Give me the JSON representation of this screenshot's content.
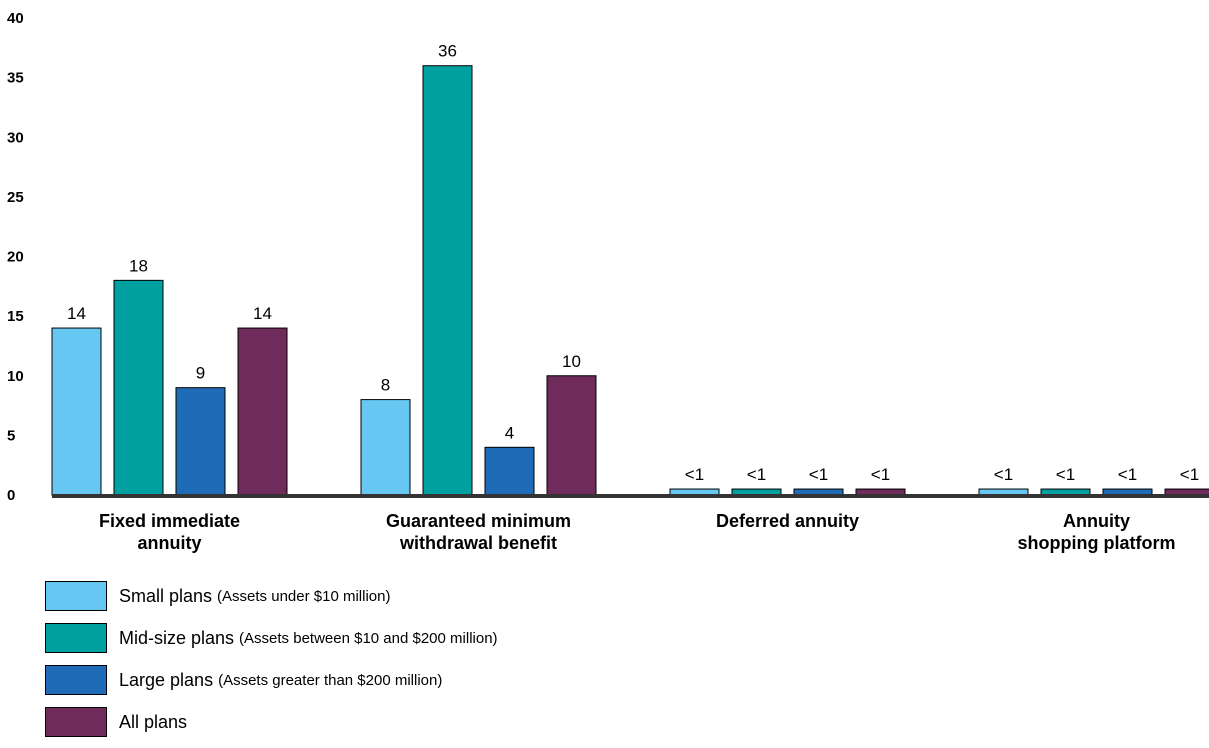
{
  "chart_data": {
    "type": "bar",
    "title": "",
    "xlabel": "",
    "ylabel": "",
    "ylim": [
      0,
      40
    ],
    "yticks": [
      0,
      5,
      10,
      15,
      20,
      25,
      30,
      35,
      40
    ],
    "grid": false,
    "legend_position": "bottom-left",
    "categories": [
      [
        "Fixed immediate",
        "annuity"
      ],
      [
        "Guaranteed minimum",
        "withdrawal benefit"
      ],
      [
        "Deferred annuity"
      ],
      [
        "Annuity",
        "shopping platform"
      ]
    ],
    "series": [
      {
        "name": "Small plans",
        "note": "(Assets under $10 million)",
        "color": "#66c8f2",
        "values": [
          14,
          8,
          0.5,
          0.5
        ],
        "labels": [
          "14",
          "8",
          "<1",
          "<1"
        ]
      },
      {
        "name": "Mid-size plans",
        "note": "(Assets between $10 and $200 million)",
        "color": "#00a0a0",
        "values": [
          18,
          36,
          0.5,
          0.5
        ],
        "labels": [
          "18",
          "36",
          "<1",
          "<1"
        ]
      },
      {
        "name": "Large plans",
        "note": "(Assets greater than $200 million)",
        "color": "#1f6bb8",
        "values": [
          9,
          4,
          0.5,
          0.5
        ],
        "labels": [
          "9",
          "4",
          "<1",
          "<1"
        ]
      },
      {
        "name": "All plans",
        "note": "",
        "color": "#6e2b5c",
        "values": [
          14,
          10,
          0.5,
          0.5
        ],
        "labels": [
          "14",
          "10",
          "<1",
          "<1"
        ]
      }
    ]
  }
}
